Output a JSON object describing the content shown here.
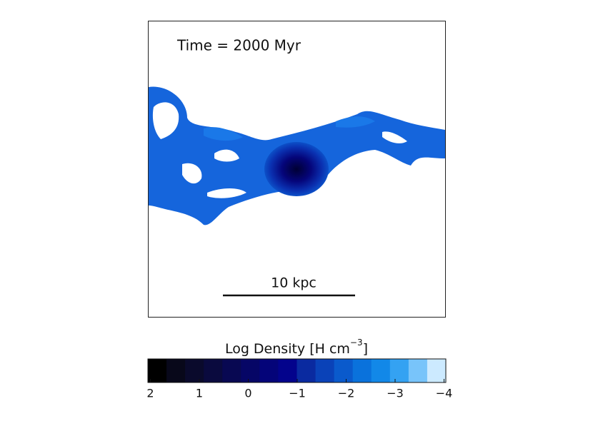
{
  "chart_data": {
    "type": "colormap",
    "annotations": {
      "time": "Time = 2000 Myr",
      "scale": "10 kpc"
    },
    "colorbar": {
      "label": [
        "Log Density [H cm",
        "−3",
        "]"
      ],
      "xlim": [
        2,
        -4
      ],
      "xticks": [
        2,
        1,
        0,
        {
          "value": -1,
          "label": "−1"
        },
        {
          "value": -2,
          "label": "−2"
        },
        {
          "value": -3,
          "label": "−3"
        },
        {
          "value": -4,
          "label": "−4"
        }
      ],
      "colors": [
        "#000000",
        "#08081a",
        "#0a0a2c",
        "#0a0a3e",
        "#080852",
        "#060666",
        "#040479",
        "#03038c",
        "#0a2aa0",
        "#0a42b8",
        "#0a5acc",
        "#0a72dc",
        "#1288e8",
        "#34a2f2",
        "#78c4fa",
        "#cceaff"
      ]
    }
  }
}
